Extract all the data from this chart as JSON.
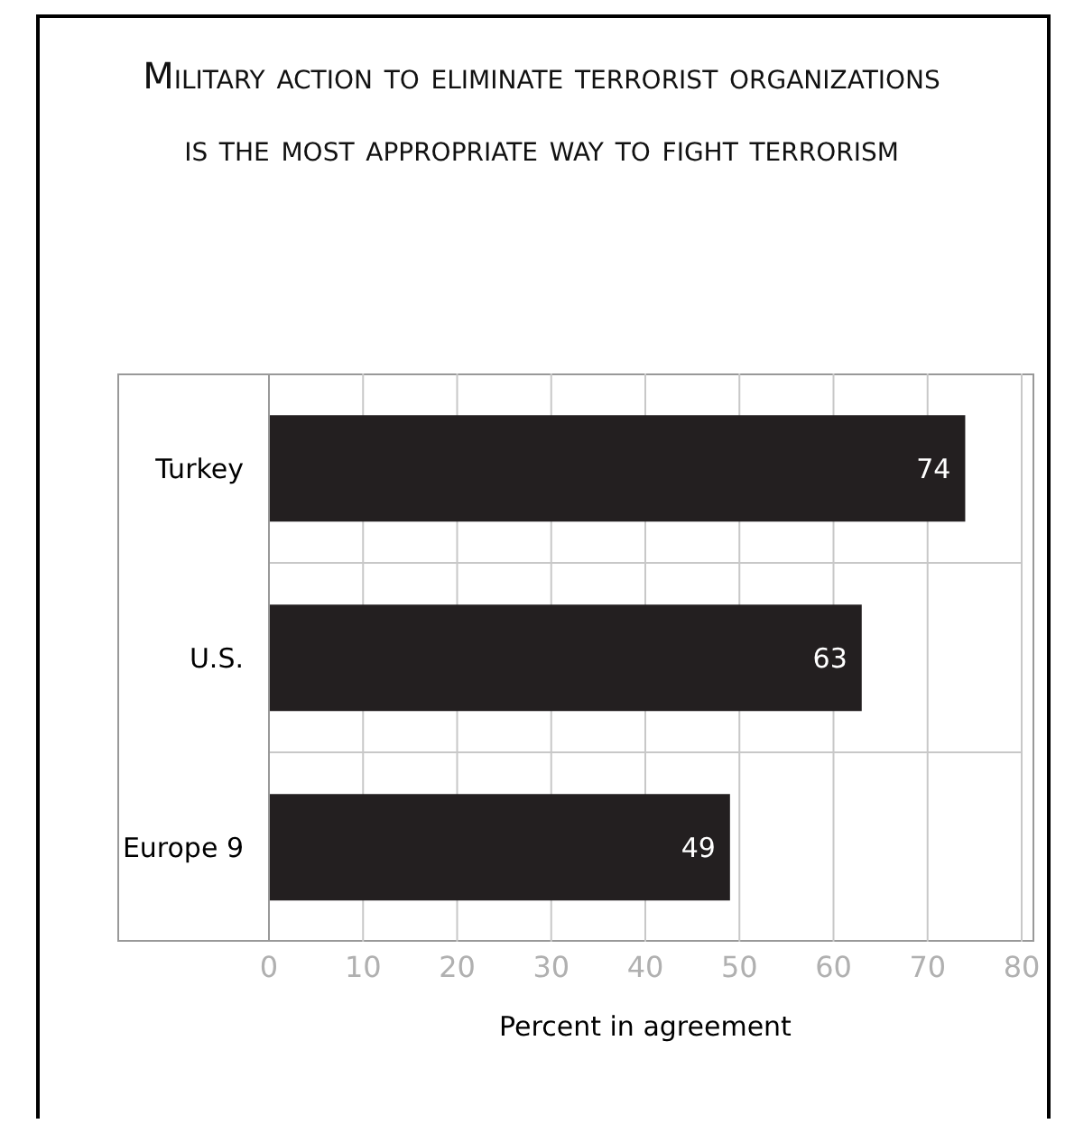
{
  "chart_data": {
    "type": "bar",
    "orientation": "horizontal",
    "title": "Military action to eliminate terrorist organizations is the most appropriate way to fight terrorism",
    "categories": [
      "Turkey",
      "U.S.",
      "Europe 9"
    ],
    "values": [
      74,
      63,
      49
    ],
    "color": "#231f20",
    "xlim": [
      0,
      80
    ],
    "xticks": [
      0,
      10,
      20,
      30,
      40,
      50,
      60,
      70,
      80
    ],
    "xlabel": "Percent in agreement",
    "data_labels": true,
    "grid": true
  }
}
